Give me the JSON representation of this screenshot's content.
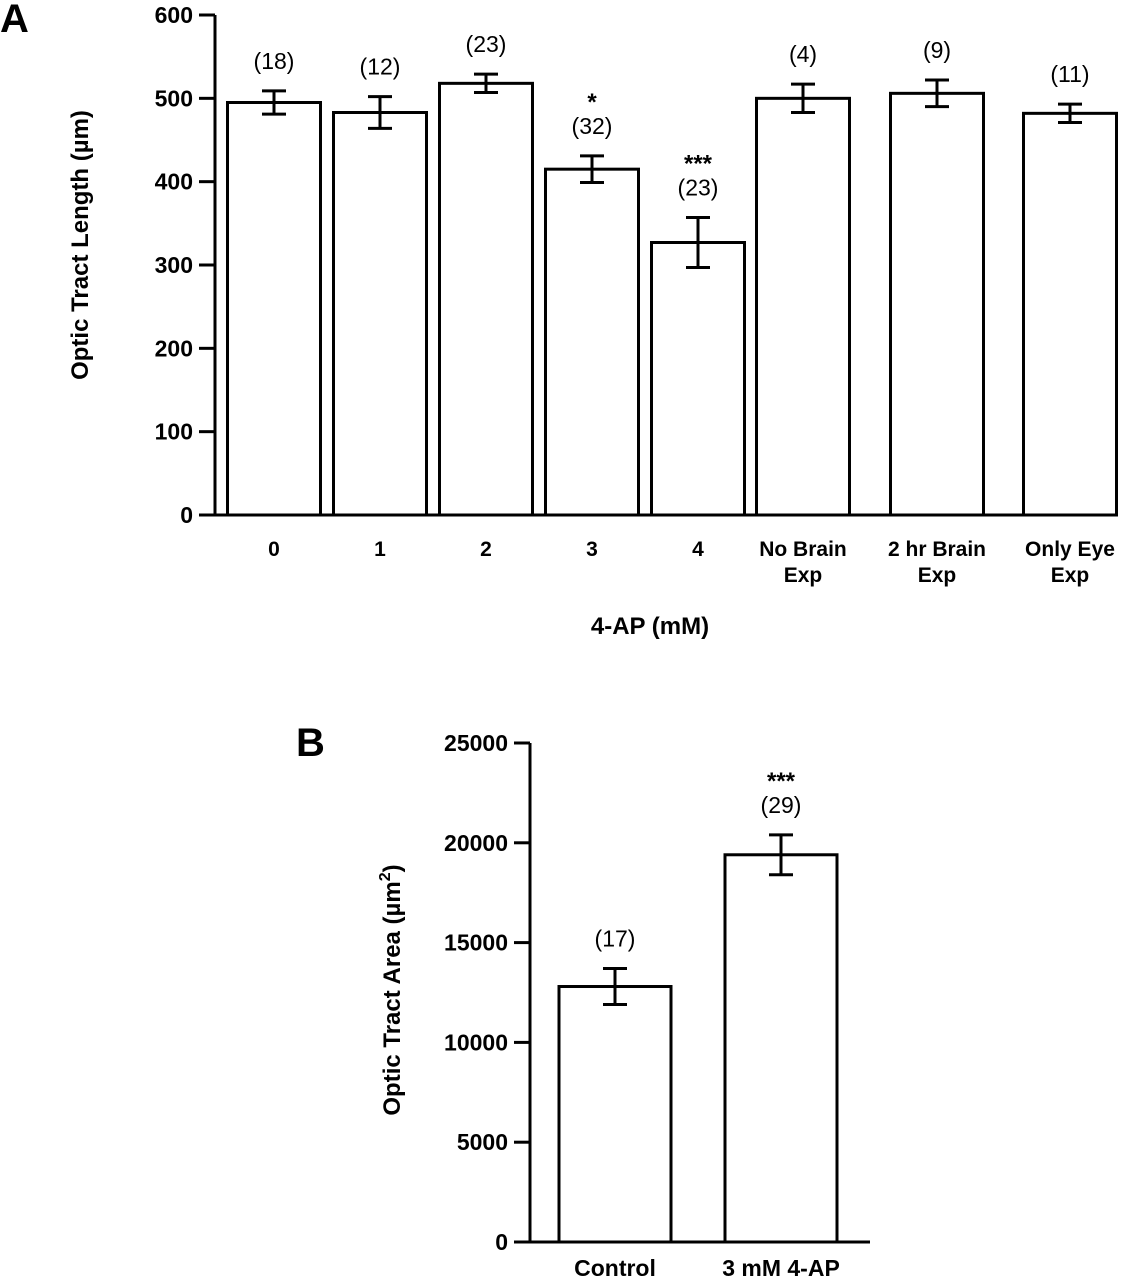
{
  "chart_data": [
    {
      "type": "bar",
      "panel": "A",
      "categories": [
        [
          "0"
        ],
        [
          "1"
        ],
        [
          "2"
        ],
        [
          "3"
        ],
        [
          "4"
        ],
        [
          "No Brain",
          "Exp"
        ],
        [
          "2 hr Brain",
          "Exp"
        ],
        [
          "Only Eye",
          "Exp"
        ]
      ],
      "values": [
        495,
        483,
        518,
        415,
        327,
        500,
        506,
        482
      ],
      "errors": [
        14,
        19,
        11,
        16,
        30,
        17,
        16,
        11
      ],
      "n_labels": [
        "(18)",
        "(12)",
        "(23)",
        "(32)",
        "(23)",
        "(4)",
        "(9)",
        "(11)"
      ],
      "significance": [
        "",
        "",
        "",
        "*",
        "***",
        "",
        "",
        ""
      ],
      "xlabel": "4-AP (mM)",
      "ylabel": "Optic Tract Length (µm)",
      "ylim": [
        0,
        600
      ],
      "yticks": [
        0,
        100,
        200,
        300,
        400,
        500,
        600
      ],
      "ytick_labels": [
        "0",
        "100",
        "200",
        "300",
        "400",
        "500",
        "600"
      ],
      "grid": false
    },
    {
      "type": "bar",
      "panel": "B",
      "categories": [
        [
          "Control"
        ],
        [
          "3 mM 4-AP"
        ]
      ],
      "values": [
        12800,
        19400
      ],
      "errors": [
        900,
        1000
      ],
      "n_labels": [
        "(17)",
        "(29)"
      ],
      "significance": [
        "",
        "***"
      ],
      "xlabel": "",
      "ylabel_main": "Optic Tract Area (µm",
      "ylabel_sup": "2",
      "ylabel_end": ")",
      "ylim": [
        0,
        25000
      ],
      "yticks": [
        0,
        5000,
        10000,
        15000,
        20000,
        25000
      ],
      "ytick_labels": [
        "0",
        "5000",
        "10000",
        "15000",
        "20000",
        "25000"
      ],
      "grid": false
    }
  ]
}
